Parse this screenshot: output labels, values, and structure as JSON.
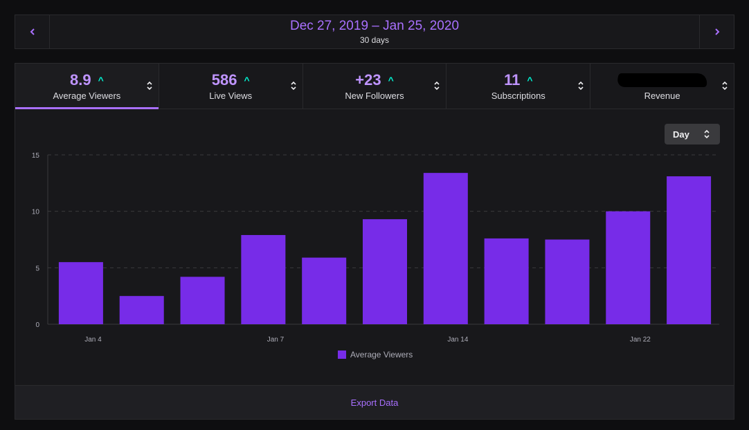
{
  "header": {
    "range": "Dec 27, 2019 – Jan 25, 2020",
    "duration": "30 days"
  },
  "tabs": [
    {
      "value": "8.9",
      "label": "Average Viewers",
      "active": true
    },
    {
      "value": "586",
      "label": "Live Views"
    },
    {
      "value": "+23",
      "label": "New Followers"
    },
    {
      "value": "11",
      "label": "Subscriptions"
    },
    {
      "value": "",
      "label": "Revenue",
      "redacted": true
    }
  ],
  "granularity": {
    "selected": "Day"
  },
  "export_label": "Export Data",
  "colors": {
    "accent": "#a970ff",
    "bar": "#772ce8",
    "up": "#00f5d4"
  },
  "chart_data": {
    "type": "bar",
    "title": "",
    "categories": [
      "",
      "",
      "",
      "",
      "",
      "",
      "",
      "",
      "",
      "",
      ""
    ],
    "tick_labels": [
      {
        "index": 0.2,
        "label": "Jan 4"
      },
      {
        "index": 3.2,
        "label": "Jan 7"
      },
      {
        "index": 6.2,
        "label": "Jan 14"
      },
      {
        "index": 9.2,
        "label": "Jan 22"
      }
    ],
    "series": [
      {
        "name": "Average Viewers",
        "values": [
          5.5,
          2.5,
          4.2,
          7.9,
          5.9,
          9.3,
          13.4,
          7.6,
          7.5,
          10.0,
          13.1
        ]
      }
    ],
    "ylim": [
      0,
      15
    ],
    "yticks": [
      0,
      5,
      10,
      15
    ],
    "grid": true,
    "legend": "bottom-center"
  }
}
